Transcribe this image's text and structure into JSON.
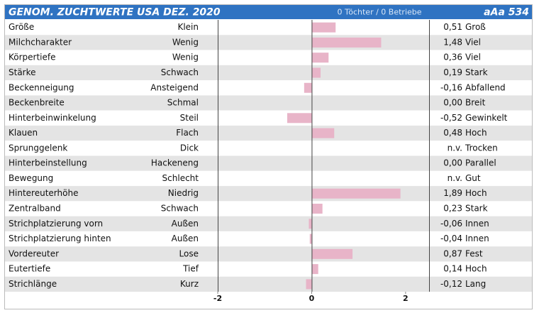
{
  "chart_data": {
    "type": "bar",
    "title": "GENOM. ZUCHTWERTE USA DEZ. 2020",
    "subtitle": "0 Töchter / 0 Betriebe",
    "code": "aAa 534",
    "categories": [
      "Größe",
      "Milchcharakter",
      "Körpertiefe",
      "Stärke",
      "Beckenneigung",
      "Beckenbreite",
      "Hinterbeinwinkelung",
      "Klauen",
      "Sprunggelenk",
      "Hinterbeinstellung",
      "Bewegung",
      "Hintereuterhöhe",
      "Zentralband",
      "Strichplatzierung vorn",
      "Strichplatzierung hinten",
      "Vordereuter",
      "Eutertiefe",
      "Strichlänge"
    ],
    "low_labels": [
      "Klein",
      "Wenig",
      "Wenig",
      "Schwach",
      "Ansteigend",
      "Schmal",
      "Steil",
      "Flach",
      "Dick",
      "Hackeneng",
      "Schlecht",
      "Niedrig",
      "Schwach",
      "Außen",
      "Außen",
      "Lose",
      "Tief",
      "Kurz"
    ],
    "high_labels": [
      "Groß",
      "Viel",
      "Viel",
      "Stark",
      "Abfallend",
      "Breit",
      "Gewinkelt",
      "Hoch",
      "Trocken",
      "Parallel",
      "Gut",
      "Hoch",
      "Stark",
      "Innen",
      "Innen",
      "Fest",
      "Hoch",
      "Lang"
    ],
    "values": [
      0.51,
      1.48,
      0.36,
      0.19,
      -0.16,
      0.0,
      -0.52,
      0.48,
      null,
      0.0,
      null,
      1.89,
      0.23,
      -0.06,
      -0.04,
      0.87,
      0.14,
      -0.12
    ],
    "value_labels": [
      "0,51",
      "1,48",
      "0,36",
      "0,19",
      "-0,16",
      "0,00",
      "-0,52",
      "0,48",
      "n.v.",
      "0,00",
      "n.v.",
      "1,89",
      "0,23",
      "-0,06",
      "-0,04",
      "0,87",
      "0,14",
      "-0,12"
    ],
    "color": "#e8b4c8",
    "xlim": [
      -2,
      2.5
    ],
    "xticks": [
      -2,
      0,
      2
    ]
  }
}
